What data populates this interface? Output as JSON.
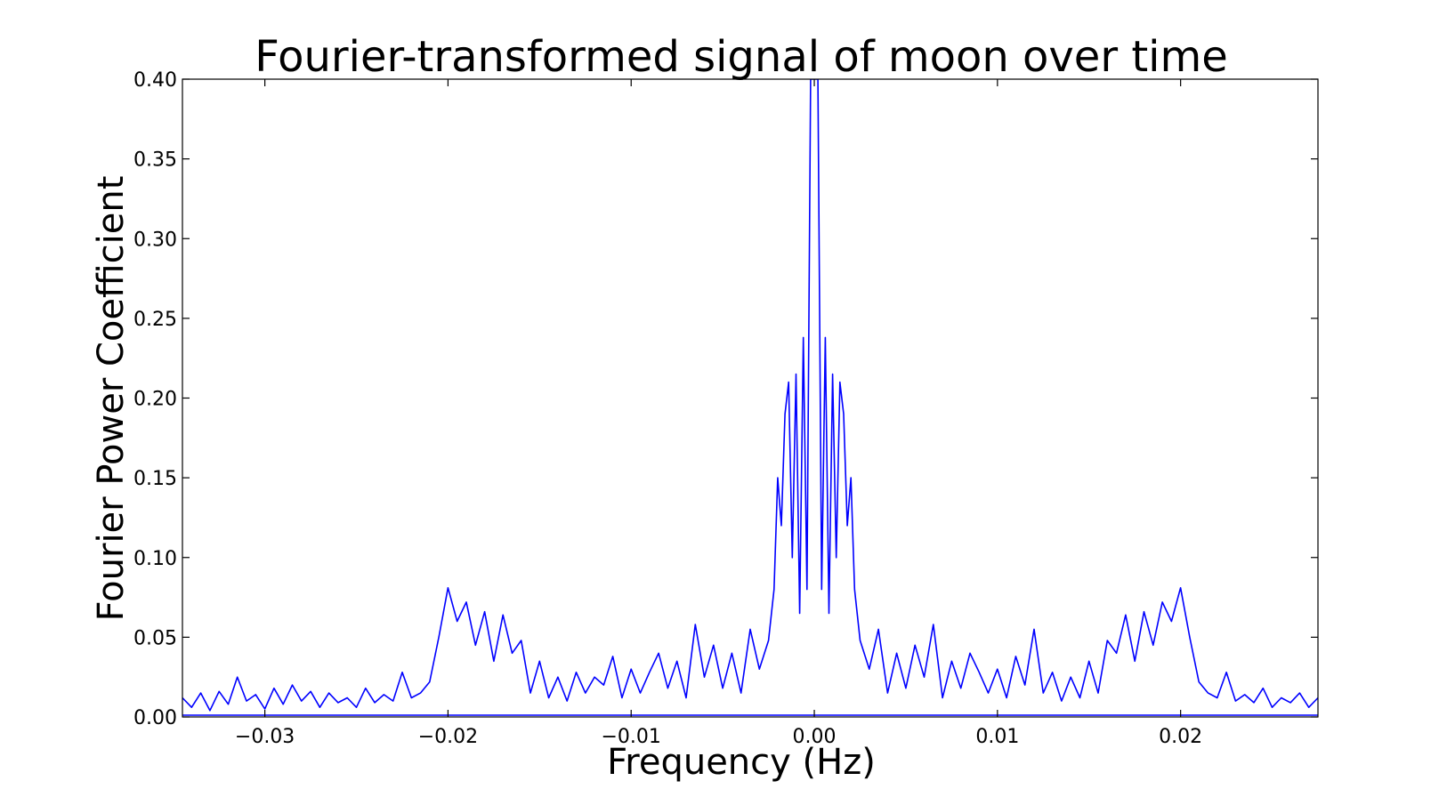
{
  "chart_data": {
    "type": "line",
    "title": "Fourier-transformed signal of moon over time",
    "xlabel": "Frequency (Hz)",
    "ylabel": "Fourier Power Coefficient",
    "xlim": [
      -0.0345,
      0.0275
    ],
    "ylim": [
      0.0,
      0.4
    ],
    "x_ticks": [
      -0.03,
      -0.02,
      -0.01,
      0.0,
      0.01,
      0.02
    ],
    "x_tick_labels": [
      "−0.03",
      "−0.02",
      "−0.01",
      "0.00",
      "0.01",
      "0.02"
    ],
    "y_ticks": [
      0.0,
      0.05,
      0.1,
      0.15,
      0.2,
      0.25,
      0.3,
      0.35,
      0.4
    ],
    "y_tick_labels": [
      "0.00",
      "0.05",
      "0.10",
      "0.15",
      "0.20",
      "0.25",
      "0.30",
      "0.35",
      "0.40"
    ],
    "grid": false,
    "legend": false,
    "line_color": "#0000ff",
    "series": [
      {
        "values": [
          [
            -0.0345,
            0.012
          ],
          [
            -0.034,
            0.006
          ],
          [
            -0.0335,
            0.015
          ],
          [
            -0.033,
            0.004
          ],
          [
            -0.0325,
            0.016
          ],
          [
            -0.032,
            0.008
          ],
          [
            -0.0315,
            0.025
          ],
          [
            -0.031,
            0.01
          ],
          [
            -0.0305,
            0.014
          ],
          [
            -0.03,
            0.005
          ],
          [
            -0.0295,
            0.018
          ],
          [
            -0.029,
            0.008
          ],
          [
            -0.0285,
            0.02
          ],
          [
            -0.028,
            0.01
          ],
          [
            -0.0275,
            0.016
          ],
          [
            -0.027,
            0.006
          ],
          [
            -0.0265,
            0.015
          ],
          [
            -0.026,
            0.009
          ],
          [
            -0.0255,
            0.012
          ],
          [
            -0.025,
            0.006
          ],
          [
            -0.0245,
            0.018
          ],
          [
            -0.024,
            0.009
          ],
          [
            -0.0235,
            0.014
          ],
          [
            -0.023,
            0.01
          ],
          [
            -0.0225,
            0.028
          ],
          [
            -0.022,
            0.012
          ],
          [
            -0.0215,
            0.015
          ],
          [
            -0.021,
            0.022
          ],
          [
            -0.0205,
            0.05
          ],
          [
            -0.02,
            0.081
          ],
          [
            -0.0195,
            0.06
          ],
          [
            -0.019,
            0.072
          ],
          [
            -0.0185,
            0.045
          ],
          [
            -0.018,
            0.066
          ],
          [
            -0.0175,
            0.035
          ],
          [
            -0.017,
            0.064
          ],
          [
            -0.0165,
            0.04
          ],
          [
            -0.016,
            0.048
          ],
          [
            -0.0155,
            0.015
          ],
          [
            -0.015,
            0.035
          ],
          [
            -0.0145,
            0.012
          ],
          [
            -0.014,
            0.025
          ],
          [
            -0.0135,
            0.01
          ],
          [
            -0.013,
            0.028
          ],
          [
            -0.0125,
            0.015
          ],
          [
            -0.012,
            0.025
          ],
          [
            -0.0115,
            0.02
          ],
          [
            -0.011,
            0.038
          ],
          [
            -0.0105,
            0.012
          ],
          [
            -0.01,
            0.03
          ],
          [
            -0.0095,
            0.015
          ],
          [
            -0.009,
            0.028
          ],
          [
            -0.0085,
            0.04
          ],
          [
            -0.008,
            0.018
          ],
          [
            -0.0075,
            0.035
          ],
          [
            -0.007,
            0.012
          ],
          [
            -0.0065,
            0.058
          ],
          [
            -0.006,
            0.025
          ],
          [
            -0.0055,
            0.045
          ],
          [
            -0.005,
            0.018
          ],
          [
            -0.0045,
            0.04
          ],
          [
            -0.004,
            0.015
          ],
          [
            -0.0035,
            0.055
          ],
          [
            -0.003,
            0.03
          ],
          [
            -0.0025,
            0.048
          ],
          [
            -0.0022,
            0.08
          ],
          [
            -0.002,
            0.15
          ],
          [
            -0.0018,
            0.12
          ],
          [
            -0.0016,
            0.19
          ],
          [
            -0.0014,
            0.21
          ],
          [
            -0.0012,
            0.1
          ],
          [
            -0.001,
            0.215
          ],
          [
            -0.0008,
            0.065
          ],
          [
            -0.0006,
            0.238
          ],
          [
            -0.0004,
            0.08
          ],
          [
            -0.0002,
            0.4
          ],
          [
            0.0,
            0.4
          ],
          [
            0.0002,
            0.4
          ],
          [
            0.0004,
            0.08
          ],
          [
            0.0006,
            0.238
          ],
          [
            0.0008,
            0.065
          ],
          [
            0.001,
            0.215
          ],
          [
            0.0012,
            0.1
          ],
          [
            0.0014,
            0.21
          ],
          [
            0.0016,
            0.19
          ],
          [
            0.0018,
            0.12
          ],
          [
            0.002,
            0.15
          ],
          [
            0.0022,
            0.08
          ],
          [
            0.0025,
            0.048
          ],
          [
            0.003,
            0.03
          ],
          [
            0.0035,
            0.055
          ],
          [
            0.004,
            0.015
          ],
          [
            0.0045,
            0.04
          ],
          [
            0.005,
            0.018
          ],
          [
            0.0055,
            0.045
          ],
          [
            0.006,
            0.025
          ],
          [
            0.0065,
            0.058
          ],
          [
            0.007,
            0.012
          ],
          [
            0.0075,
            0.035
          ],
          [
            0.008,
            0.018
          ],
          [
            0.0085,
            0.04
          ],
          [
            0.009,
            0.028
          ],
          [
            0.0095,
            0.015
          ],
          [
            0.01,
            0.03
          ],
          [
            0.0105,
            0.012
          ],
          [
            0.011,
            0.038
          ],
          [
            0.0115,
            0.02
          ],
          [
            0.012,
            0.055
          ],
          [
            0.0125,
            0.015
          ],
          [
            0.013,
            0.028
          ],
          [
            0.0135,
            0.01
          ],
          [
            0.014,
            0.025
          ],
          [
            0.0145,
            0.012
          ],
          [
            0.015,
            0.035
          ],
          [
            0.0155,
            0.015
          ],
          [
            0.016,
            0.048
          ],
          [
            0.0165,
            0.04
          ],
          [
            0.017,
            0.064
          ],
          [
            0.0175,
            0.035
          ],
          [
            0.018,
            0.066
          ],
          [
            0.0185,
            0.045
          ],
          [
            0.019,
            0.072
          ],
          [
            0.0195,
            0.06
          ],
          [
            0.02,
            0.081
          ],
          [
            0.0205,
            0.05
          ],
          [
            0.021,
            0.022
          ],
          [
            0.0215,
            0.015
          ],
          [
            0.022,
            0.012
          ],
          [
            0.0225,
            0.028
          ],
          [
            0.023,
            0.01
          ],
          [
            0.0235,
            0.014
          ],
          [
            0.024,
            0.009
          ],
          [
            0.0245,
            0.018
          ],
          [
            0.025,
            0.006
          ],
          [
            0.0255,
            0.012
          ],
          [
            0.026,
            0.009
          ],
          [
            0.0265,
            0.015
          ],
          [
            0.027,
            0.006
          ],
          [
            0.0275,
            0.012
          ]
        ]
      }
    ]
  }
}
